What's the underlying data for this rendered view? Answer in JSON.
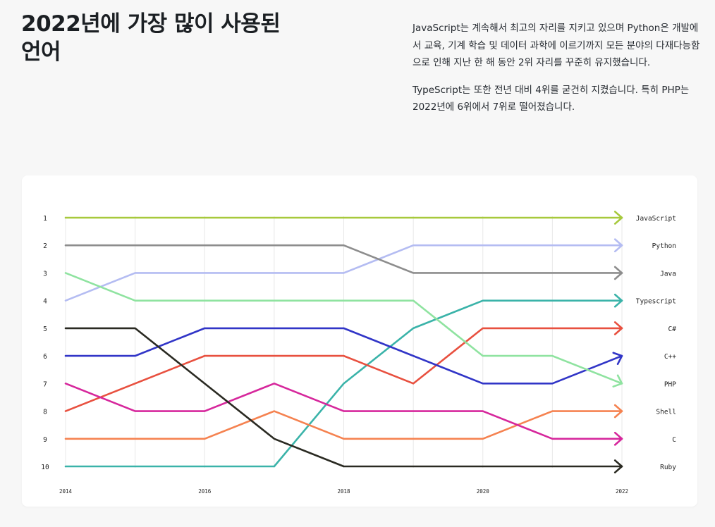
{
  "header": {
    "title": "2022년에 가장 많이 사용된 언어",
    "paragraphs": [
      "JavaScript는 계속해서 최고의 자리를 지키고 있으며 Python은 개발에서 교육, 기계 학습 및 데이터 과학에 이르기까지 모든 분야의 다재다능함으로 인해 지난 한 해 동안 2위 자리를 꾸준히 유지했습니다.",
      "TypeScript는 또한 전년 대비 4위를 굳건히 지켰습니다. 특히 PHP는 2022년에 6위에서 7위로 떨어졌습니다."
    ]
  },
  "chart_data": {
    "type": "line",
    "x": [
      2014,
      2015,
      2016,
      2017,
      2018,
      2019,
      2020,
      2021,
      2022
    ],
    "x_tick_labels": [
      "2014",
      "2016",
      "2018",
      "2020",
      "2022"
    ],
    "y_tick_labels": [
      "1",
      "2",
      "3",
      "4",
      "5",
      "6",
      "7",
      "8",
      "9",
      "10"
    ],
    "ylim": [
      1,
      10
    ],
    "y_inverted": true,
    "grid": "vertical",
    "legend": "right-end labels",
    "series": [
      {
        "name": "JavaScript",
        "color": "#a7c93c",
        "values": [
          1,
          1,
          1,
          1,
          1,
          1,
          1,
          1,
          1
        ]
      },
      {
        "name": "Python",
        "color": "#b4bcf2",
        "values": [
          4,
          3,
          3,
          3,
          3,
          2,
          2,
          2,
          2
        ]
      },
      {
        "name": "Java",
        "color": "#8d8d8d",
        "values": [
          2,
          2,
          2,
          2,
          2,
          3,
          3,
          3,
          3
        ]
      },
      {
        "name": "Typescript",
        "color": "#3ab3a9",
        "values": [
          10,
          10,
          10,
          10,
          7,
          5,
          4,
          4,
          4
        ]
      },
      {
        "name": "C#",
        "color": "#e8503f",
        "values": [
          8,
          7,
          6,
          6,
          6,
          7,
          5,
          5,
          5
        ]
      },
      {
        "name": "C++",
        "color": "#3135c7",
        "values": [
          6,
          6,
          5,
          5,
          5,
          6,
          7,
          7,
          6
        ]
      },
      {
        "name": "PHP",
        "color": "#8fe3a0",
        "values": [
          3,
          4,
          4,
          4,
          4,
          4,
          6,
          6,
          7
        ]
      },
      {
        "name": "Shell",
        "color": "#f58250",
        "values": [
          9,
          9,
          9,
          8,
          9,
          9,
          9,
          8,
          8
        ]
      },
      {
        "name": "C",
        "color": "#d6279c",
        "values": [
          7,
          8,
          8,
          7,
          8,
          8,
          8,
          9,
          9
        ]
      },
      {
        "name": "Ruby",
        "color": "#2a2a22",
        "values": [
          5,
          5,
          7,
          9,
          10,
          10,
          10,
          10,
          10
        ]
      }
    ]
  }
}
